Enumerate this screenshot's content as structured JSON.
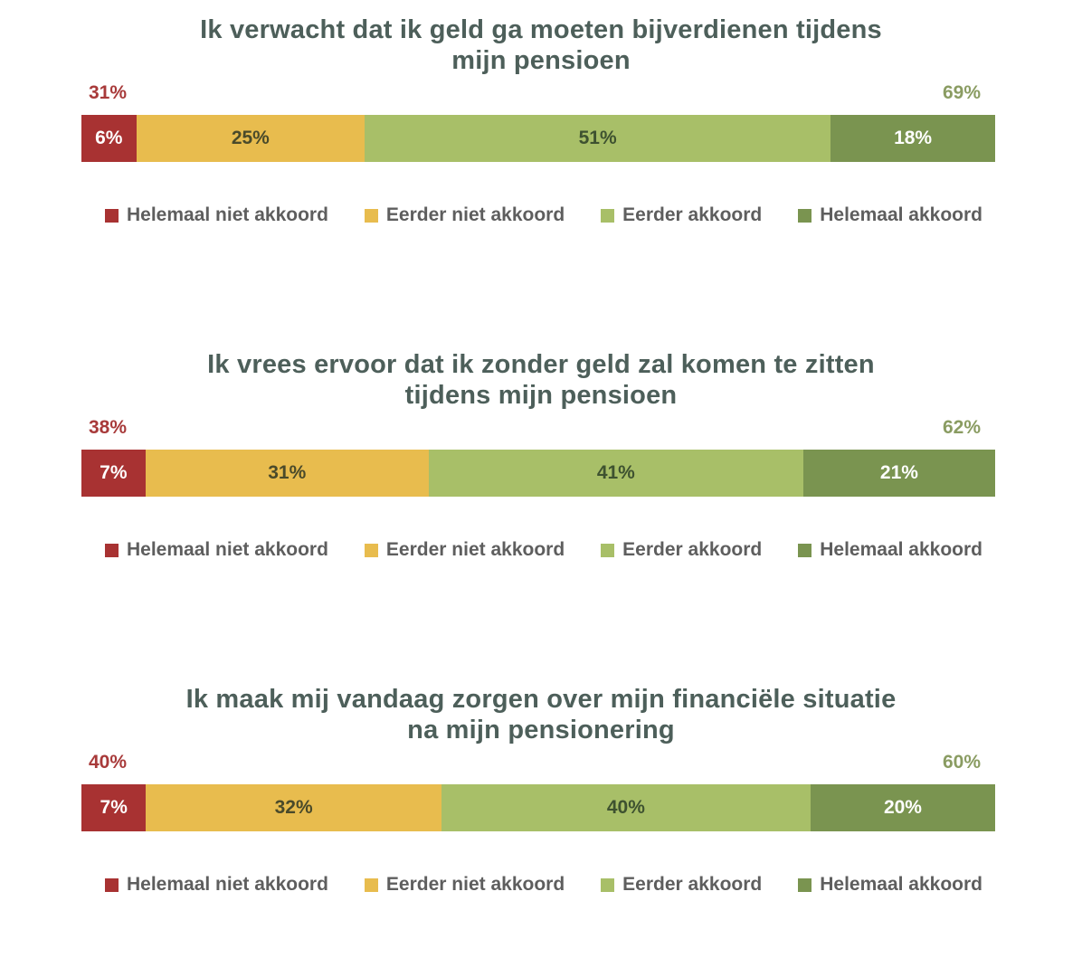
{
  "chart_data": [
    {
      "type": "bar",
      "orientation": "horizontal-stacked",
      "title": "Ik verwacht dat ik geld ga moeten bijverdienen tijdens mijn pensioen",
      "title_lines": [
        "Ik verwacht dat ik geld ga moeten bijverdienen tijdens",
        "mijn pensioen"
      ],
      "categories": [
        "Helemaal niet akkoord",
        "Eerder niet akkoord",
        "Eerder akkoord",
        "Helemaal akkoord"
      ],
      "values": [
        6,
        25,
        51,
        18
      ],
      "value_labels": [
        "6%",
        "25%",
        "51%",
        "18%"
      ],
      "total_disagree": "31%",
      "total_agree": "69%",
      "xlim": [
        0,
        100
      ],
      "legend_position": "bottom"
    },
    {
      "type": "bar",
      "orientation": "horizontal-stacked",
      "title": "Ik vrees ervoor dat ik zonder geld zal komen te zitten tijdens mijn pensioen",
      "title_lines": [
        "Ik vrees ervoor dat ik zonder geld zal komen te zitten",
        "tijdens mijn pensioen"
      ],
      "categories": [
        "Helemaal niet akkoord",
        "Eerder niet akkoord",
        "Eerder akkoord",
        "Helemaal akkoord"
      ],
      "values": [
        7,
        31,
        41,
        21
      ],
      "value_labels": [
        "7%",
        "31%",
        "41%",
        "21%"
      ],
      "total_disagree": "38%",
      "total_agree": "62%",
      "xlim": [
        0,
        100
      ],
      "legend_position": "bottom"
    },
    {
      "type": "bar",
      "orientation": "horizontal-stacked",
      "title": "Ik maak mij vandaag zorgen over mijn financiële situatie na mijn pensionering",
      "title_lines": [
        "Ik maak mij vandaag zorgen over mijn financiële situatie",
        "na mijn pensionering"
      ],
      "categories": [
        "Helemaal niet akkoord",
        "Eerder niet akkoord",
        "Eerder akkoord",
        "Helemaal akkoord"
      ],
      "values": [
        7,
        32,
        40,
        20
      ],
      "value_labels": [
        "7%",
        "32%",
        "40%",
        "20%"
      ],
      "total_disagree": "40%",
      "total_agree": "60%",
      "xlim": [
        0,
        100
      ],
      "legend_position": "bottom"
    }
  ],
  "legend": [
    "Helemaal niet akkoord",
    "Eerder niet akkoord",
    "Eerder akkoord",
    "Helemaal akkoord"
  ],
  "colors": {
    "segments": [
      "#a83232",
      "#e8bc4e",
      "#a8bf68",
      "#7a9450"
    ],
    "segment_text": [
      "#ffffff",
      "#4a4a2a",
      "#3e5230",
      "#ffffff"
    ],
    "title": "#4d5f5a",
    "total_disagree": "#a83a3a",
    "total_agree": "#8a9c62"
  }
}
